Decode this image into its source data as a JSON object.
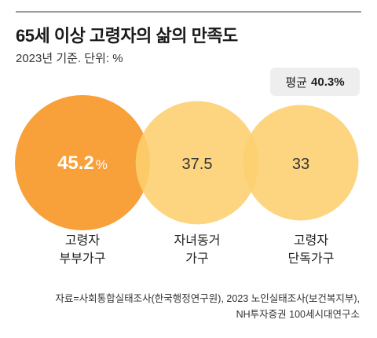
{
  "header": {
    "title": "65세 이상 고령자의 삶의 만족도",
    "subtitle": "2023년 기준. 단위: %"
  },
  "average": {
    "label": "평균",
    "value": "40.3%"
  },
  "chart_data": {
    "type": "bubble",
    "title": "65세 이상 고령자의 삶의 만족도",
    "unit": "%",
    "categories": [
      {
        "line1": "고령자",
        "line2": "부부가구"
      },
      {
        "line1": "자녀동거",
        "line2": "가구"
      },
      {
        "line1": "고령자",
        "line2": "단독가구"
      }
    ],
    "values": [
      45.2,
      37.5,
      33
    ],
    "value_labels": [
      "45.2",
      "37.5",
      "33"
    ],
    "value_suffix": [
      "%",
      "",
      ""
    ],
    "average": 40.3,
    "colors": {
      "highlight": "#F7931E",
      "normal": "#FDCF6E"
    }
  },
  "footer": {
    "source_line1": "자료=사회통합실태조사(한국행정연구원), 2023 노인실태조사(보건복지부),",
    "source_line2": "NH투자증권 100세시대연구소"
  }
}
